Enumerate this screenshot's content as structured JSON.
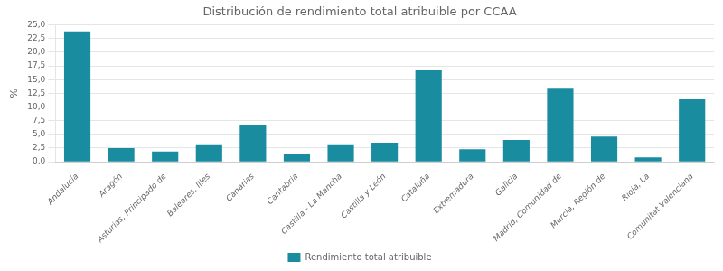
{
  "chart_data": {
    "type": "bar",
    "title": "Distribución de rendimiento total atribuible por CCAA",
    "categories": [
      "Andalucía",
      "Aragón",
      "Asturias, Principado de",
      "Baleares, Illes",
      "Canarias",
      "Cantabria",
      "Castilla - La Mancha",
      "Castilla y León",
      "Cataluña",
      "Extremadura",
      "Galicia",
      "Madrid, Comunidad de",
      "Murcia, Región de",
      "Rioja, La",
      "Comunitat Valenciana"
    ],
    "series": [
      {
        "name": "Rendimiento total atribuible",
        "color": "#1a8ca0",
        "values": [
          23.8,
          2.5,
          1.9,
          3.2,
          6.8,
          1.5,
          3.2,
          3.5,
          16.8,
          2.3,
          4.0,
          13.5,
          4.6,
          0.8,
          11.4
        ]
      }
    ],
    "ylabel": "%",
    "ylim": [
      0,
      25.0
    ],
    "yticks": [
      {
        "value": 0.0,
        "label": "0,0"
      },
      {
        "value": 2.5,
        "label": "2,5"
      },
      {
        "value": 5.0,
        "label": "5,0"
      },
      {
        "value": 7.5,
        "label": "7,5"
      },
      {
        "value": 10.0,
        "label": "10,0"
      },
      {
        "value": 12.5,
        "label": "12,5"
      },
      {
        "value": 15.0,
        "label": "15,0"
      },
      {
        "value": 17.5,
        "label": "17,5"
      },
      {
        "value": 20.0,
        "label": "20,0"
      },
      {
        "value": 22.5,
        "label": "22,5"
      },
      {
        "value": 25.0,
        "label": "25,0"
      }
    ],
    "grid": true,
    "legend": "bottom"
  }
}
